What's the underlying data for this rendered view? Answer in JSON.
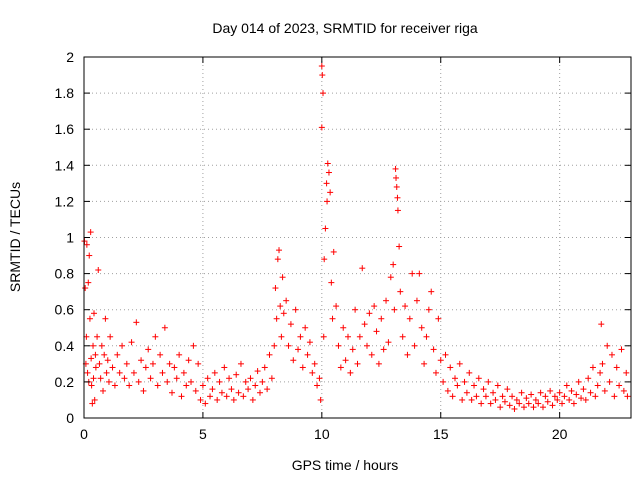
{
  "chart_data": {
    "type": "scatter",
    "title": "Day 014 of 2023, SRMTID for receiver riga",
    "xlabel": "GPS time / hours",
    "ylabel": "SRMTID / TECUs",
    "xlim": [
      0,
      23
    ],
    "ylim": [
      0,
      2
    ],
    "xticks": [
      0,
      5,
      10,
      15,
      20
    ],
    "yticks": [
      0,
      0.2,
      0.4,
      0.6,
      0.8,
      1,
      1.2,
      1.4,
      1.6,
      1.8,
      2
    ],
    "ytick_labels": [
      "0",
      "0.2",
      "0.4",
      "0.6",
      "0.8",
      "1",
      "1.2",
      "1.4",
      "1.6",
      "1.8",
      "2"
    ],
    "xtick_labels": [
      "0",
      "5",
      "10",
      "15",
      "20"
    ],
    "grid": true,
    "marker": "+",
    "series_color": "#ff0000",
    "series": [
      {
        "name": "SRMTID",
        "points": [
          [
            0.02,
            0.98
          ],
          [
            0.05,
            0.72
          ],
          [
            0.08,
            0.3
          ],
          [
            0.1,
            0.45
          ],
          [
            0.12,
            0.96
          ],
          [
            0.15,
            0.25
          ],
          [
            0.18,
            0.75
          ],
          [
            0.2,
            0.2
          ],
          [
            0.22,
            0.9
          ],
          [
            0.25,
            0.55
          ],
          [
            0.28,
            1.03
          ],
          [
            0.3,
            0.33
          ],
          [
            0.32,
            0.18
          ],
          [
            0.35,
            0.08
          ],
          [
            0.38,
            0.4
          ],
          [
            0.4,
            0.22
          ],
          [
            0.42,
            0.58
          ],
          [
            0.45,
            0.1
          ],
          [
            0.48,
            0.35
          ],
          [
            0.5,
            0.28
          ],
          [
            0.55,
            0.45
          ],
          [
            0.6,
            0.82
          ],
          [
            0.65,
            0.3
          ],
          [
            0.7,
            0.22
          ],
          [
            0.75,
            0.4
          ],
          [
            0.8,
            0.15
          ],
          [
            0.85,
            0.35
          ],
          [
            0.9,
            0.55
          ],
          [
            0.95,
            0.25
          ],
          [
            1.0,
            0.32
          ],
          [
            1.05,
            0.2
          ],
          [
            1.1,
            0.45
          ],
          [
            1.2,
            0.28
          ],
          [
            1.3,
            0.18
          ],
          [
            1.4,
            0.35
          ],
          [
            1.5,
            0.25
          ],
          [
            1.6,
            0.4
          ],
          [
            1.7,
            0.22
          ],
          [
            1.8,
            0.3
          ],
          [
            1.9,
            0.18
          ],
          [
            2.0,
            0.42
          ],
          [
            2.1,
            0.25
          ],
          [
            2.2,
            0.53
          ],
          [
            2.3,
            0.2
          ],
          [
            2.4,
            0.32
          ],
          [
            2.5,
            0.15
          ],
          [
            2.6,
            0.28
          ],
          [
            2.7,
            0.38
          ],
          [
            2.8,
            0.22
          ],
          [
            2.9,
            0.3
          ],
          [
            3.0,
            0.45
          ],
          [
            3.1,
            0.18
          ],
          [
            3.2,
            0.35
          ],
          [
            3.3,
            0.25
          ],
          [
            3.4,
            0.5
          ],
          [
            3.5,
            0.2
          ],
          [
            3.6,
            0.3
          ],
          [
            3.7,
            0.14
          ],
          [
            3.8,
            0.28
          ],
          [
            3.9,
            0.22
          ],
          [
            4.0,
            0.35
          ],
          [
            4.1,
            0.12
          ],
          [
            4.2,
            0.25
          ],
          [
            4.3,
            0.18
          ],
          [
            4.4,
            0.32
          ],
          [
            4.5,
            0.2
          ],
          [
            4.6,
            0.4
          ],
          [
            4.7,
            0.15
          ],
          [
            4.8,
            0.3
          ],
          [
            4.9,
            0.1
          ],
          [
            5.0,
            0.18
          ],
          [
            5.1,
            0.08
          ],
          [
            5.2,
            0.22
          ],
          [
            5.3,
            0.12
          ],
          [
            5.4,
            0.16
          ],
          [
            5.5,
            0.25
          ],
          [
            5.6,
            0.1
          ],
          [
            5.7,
            0.2
          ],
          [
            5.8,
            0.14
          ],
          [
            5.9,
            0.28
          ],
          [
            6.0,
            0.12
          ],
          [
            6.1,
            0.22
          ],
          [
            6.2,
            0.16
          ],
          [
            6.3,
            0.1
          ],
          [
            6.4,
            0.24
          ],
          [
            6.5,
            0.14
          ],
          [
            6.6,
            0.3
          ],
          [
            6.7,
            0.12
          ],
          [
            6.8,
            0.2
          ],
          [
            6.9,
            0.16
          ],
          [
            7.0,
            0.22
          ],
          [
            7.1,
            0.1
          ],
          [
            7.2,
            0.18
          ],
          [
            7.3,
            0.26
          ],
          [
            7.4,
            0.14
          ],
          [
            7.5,
            0.2
          ],
          [
            7.6,
            0.28
          ],
          [
            7.7,
            0.16
          ],
          [
            7.8,
            0.35
          ],
          [
            7.9,
            0.22
          ],
          [
            8.0,
            0.4
          ],
          [
            8.05,
            0.72
          ],
          [
            8.1,
            0.55
          ],
          [
            8.15,
            0.88
          ],
          [
            8.2,
            0.93
          ],
          [
            8.25,
            0.62
          ],
          [
            8.3,
            0.45
          ],
          [
            8.35,
            0.78
          ],
          [
            8.4,
            0.58
          ],
          [
            8.5,
            0.65
          ],
          [
            8.6,
            0.4
          ],
          [
            8.7,
            0.52
          ],
          [
            8.8,
            0.32
          ],
          [
            8.9,
            0.6
          ],
          [
            9.0,
            0.38
          ],
          [
            9.1,
            0.45
          ],
          [
            9.2,
            0.28
          ],
          [
            9.3,
            0.5
          ],
          [
            9.4,
            0.35
          ],
          [
            9.5,
            0.42
          ],
          [
            9.6,
            0.25
          ],
          [
            9.7,
            0.3
          ],
          [
            9.8,
            0.18
          ],
          [
            9.9,
            0.22
          ],
          [
            9.95,
            0.1
          ],
          [
            10.0,
            1.95
          ],
          [
            10.02,
            1.9
          ],
          [
            10.05,
            1.8
          ],
          [
            10.0,
            1.61
          ],
          [
            10.08,
            0.45
          ],
          [
            10.1,
            0.88
          ],
          [
            10.15,
            1.05
          ],
          [
            10.2,
            1.3
          ],
          [
            10.22,
            1.2
          ],
          [
            10.25,
            1.41
          ],
          [
            10.3,
            1.36
          ],
          [
            10.35,
            1.25
          ],
          [
            10.4,
            0.75
          ],
          [
            10.45,
            0.55
          ],
          [
            10.5,
            0.92
          ],
          [
            10.6,
            0.62
          ],
          [
            10.7,
            0.4
          ],
          [
            10.8,
            0.28
          ],
          [
            10.9,
            0.5
          ],
          [
            11.0,
            0.32
          ],
          [
            11.1,
            0.45
          ],
          [
            11.2,
            0.25
          ],
          [
            11.3,
            0.38
          ],
          [
            11.4,
            0.6
          ],
          [
            11.5,
            0.3
          ],
          [
            11.6,
            0.45
          ],
          [
            11.7,
            0.83
          ],
          [
            11.8,
            0.52
          ],
          [
            11.9,
            0.4
          ],
          [
            12.0,
            0.58
          ],
          [
            12.1,
            0.35
          ],
          [
            12.2,
            0.62
          ],
          [
            12.3,
            0.48
          ],
          [
            12.4,
            0.3
          ],
          [
            12.5,
            0.55
          ],
          [
            12.6,
            0.38
          ],
          [
            12.7,
            0.65
          ],
          [
            12.8,
            0.42
          ],
          [
            12.9,
            0.78
          ],
          [
            13.0,
            0.85
          ],
          [
            13.05,
            0.6
          ],
          [
            13.1,
            1.38
          ],
          [
            13.12,
            1.33
          ],
          [
            13.15,
            1.28
          ],
          [
            13.18,
            1.22
          ],
          [
            13.2,
            1.15
          ],
          [
            13.25,
            0.95
          ],
          [
            13.3,
            0.7
          ],
          [
            13.4,
            0.45
          ],
          [
            13.5,
            0.62
          ],
          [
            13.6,
            0.35
          ],
          [
            13.7,
            0.55
          ],
          [
            13.8,
            0.8
          ],
          [
            13.9,
            0.4
          ],
          [
            14.0,
            0.65
          ],
          [
            14.1,
            0.8
          ],
          [
            14.2,
            0.5
          ],
          [
            14.3,
            0.3
          ],
          [
            14.4,
            0.45
          ],
          [
            14.5,
            0.6
          ],
          [
            14.6,
            0.7
          ],
          [
            14.7,
            0.38
          ],
          [
            14.8,
            0.25
          ],
          [
            14.9,
            0.55
          ],
          [
            15.0,
            0.32
          ],
          [
            15.1,
            0.2
          ],
          [
            15.2,
            0.35
          ],
          [
            15.3,
            0.15
          ],
          [
            15.4,
            0.28
          ],
          [
            15.5,
            0.12
          ],
          [
            15.6,
            0.22
          ],
          [
            15.7,
            0.18
          ],
          [
            15.8,
            0.3
          ],
          [
            15.9,
            0.1
          ],
          [
            16.0,
            0.2
          ],
          [
            16.1,
            0.14
          ],
          [
            16.2,
            0.25
          ],
          [
            16.3,
            0.1
          ],
          [
            16.4,
            0.18
          ],
          [
            16.5,
            0.12
          ],
          [
            16.6,
            0.22
          ],
          [
            16.7,
            0.08
          ],
          [
            16.8,
            0.16
          ],
          [
            16.9,
            0.12
          ],
          [
            17.0,
            0.2
          ],
          [
            17.1,
            0.08
          ],
          [
            17.2,
            0.14
          ],
          [
            17.3,
            0.1
          ],
          [
            17.4,
            0.18
          ],
          [
            17.5,
            0.06
          ],
          [
            17.6,
            0.12
          ],
          [
            17.7,
            0.09
          ],
          [
            17.8,
            0.16
          ],
          [
            17.9,
            0.07
          ],
          [
            18.0,
            0.12
          ],
          [
            18.1,
            0.05
          ],
          [
            18.2,
            0.1
          ],
          [
            18.3,
            0.08
          ],
          [
            18.4,
            0.14
          ],
          [
            18.5,
            0.06
          ],
          [
            18.6,
            0.11
          ],
          [
            18.7,
            0.08
          ],
          [
            18.8,
            0.13
          ],
          [
            18.9,
            0.06
          ],
          [
            19.0,
            0.1
          ],
          [
            19.1,
            0.08
          ],
          [
            19.2,
            0.14
          ],
          [
            19.3,
            0.06
          ],
          [
            19.4,
            0.12
          ],
          [
            19.5,
            0.09
          ],
          [
            19.6,
            0.15
          ],
          [
            19.7,
            0.07
          ],
          [
            19.8,
            0.12
          ],
          [
            19.9,
            0.1
          ],
          [
            20.0,
            0.14
          ],
          [
            20.1,
            0.08
          ],
          [
            20.2,
            0.12
          ],
          [
            20.3,
            0.18
          ],
          [
            20.4,
            0.1
          ],
          [
            20.5,
            0.15
          ],
          [
            20.6,
            0.08
          ],
          [
            20.7,
            0.13
          ],
          [
            20.8,
            0.2
          ],
          [
            20.9,
            0.11
          ],
          [
            21.0,
            0.16
          ],
          [
            21.1,
            0.1
          ],
          [
            21.2,
            0.22
          ],
          [
            21.3,
            0.14
          ],
          [
            21.4,
            0.28
          ],
          [
            21.5,
            0.12
          ],
          [
            21.6,
            0.18
          ],
          [
            21.7,
            0.25
          ],
          [
            21.75,
            0.52
          ],
          [
            21.8,
            0.3
          ],
          [
            21.9,
            0.15
          ],
          [
            22.0,
            0.4
          ],
          [
            22.1,
            0.2
          ],
          [
            22.2,
            0.35
          ],
          [
            22.3,
            0.12
          ],
          [
            22.4,
            0.28
          ],
          [
            22.5,
            0.18
          ],
          [
            22.6,
            0.38
          ],
          [
            22.7,
            0.15
          ],
          [
            22.8,
            0.25
          ],
          [
            22.85,
            0.12
          ]
        ]
      }
    ]
  }
}
